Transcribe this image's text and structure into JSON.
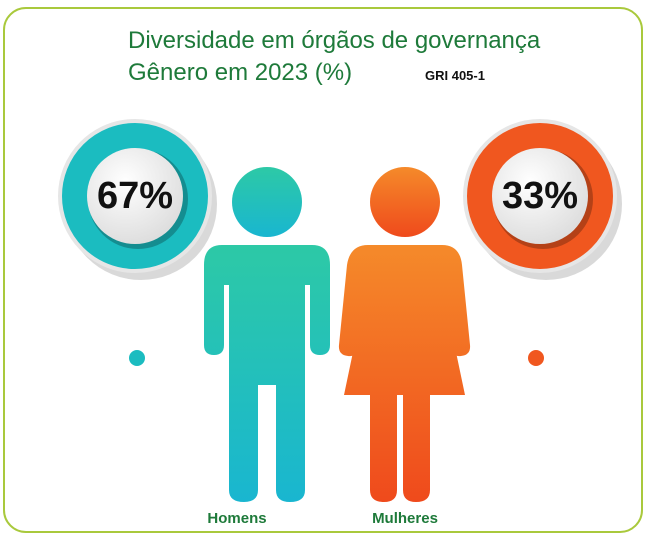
{
  "chart_data": {
    "type": "pictogram",
    "title": "Diversidade em órgãos de governança",
    "subtitle": "Gênero em 2023 (%)",
    "annotation": "GRI 405-1",
    "categories": [
      "Homens",
      "Mulheres"
    ],
    "values": [
      67,
      33
    ],
    "value_labels": [
      "67%",
      "33%"
    ],
    "colors": [
      "#1bbcc0",
      "#f0571f"
    ]
  }
}
